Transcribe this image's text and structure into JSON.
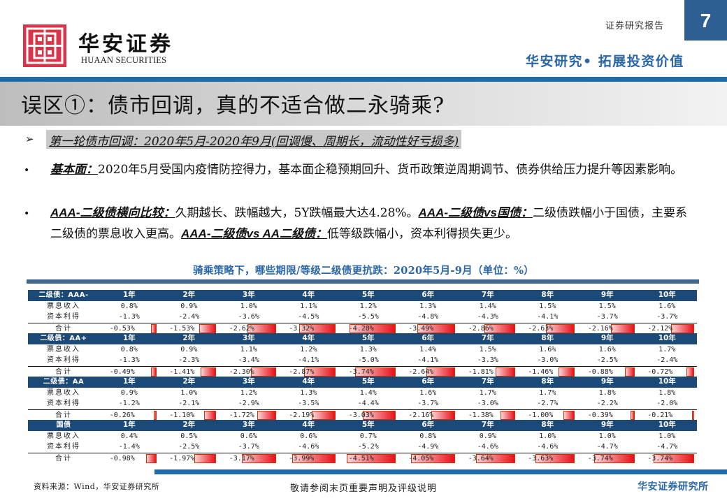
{
  "header": {
    "brand_cn": "华安证券",
    "brand_en": "HUAAN SECURITIES",
    "report_type": "证券研究报告",
    "page_number": "7",
    "slogan": "华安研究• 拓展投资价值"
  },
  "title": "误区①：债市回调，真的不适合做二永骑乘?",
  "section_heading": "第一轮债市回调：2020年5月-2020年9月(回调慢、周期长，流动性好亏损多)",
  "bullets": [
    {
      "kw1": "基本面：",
      "text1": "2020年5月受国内疫情防控得力，基本面企稳预期回升、货币政策逆周期调节、债券供给压力提升等因素影响。"
    },
    {
      "kw1": "AAA-二级债横向比较：",
      "text1": "久期越长、跌幅越大，5Y跌幅最大达4.28%。",
      "kw2": "AAA-二级债vs国债：",
      "text2": "二级债跌幅小于国债，主要系二级债的票息收入更高。",
      "kw3": "AAA-二级债vs AA二级债：",
      "text3": "低等级跌幅小，资本利得损失更少。"
    }
  ],
  "caption": "骑乘策略下，哪些期限/等级二级债更抗跌：2020年5月-9月（单位：%）",
  "table": {
    "columns": [
      "1年",
      "2年",
      "3年",
      "4年",
      "5年",
      "6年",
      "7年",
      "8年",
      "9年",
      "10年"
    ],
    "row_labels": {
      "coupon": "票息收入",
      "capital": "资本利得",
      "total": "合计"
    },
    "groups": [
      {
        "name": "二级债：AAA-",
        "coupon": [
          "0.8%",
          "0.9%",
          "1.0%",
          "1.1%",
          "1.2%",
          "1.3%",
          "1.4%",
          "1.5%",
          "1.5%",
          "1.6%"
        ],
        "capital": [
          "-1.3%",
          "-2.4%",
          "-3.6%",
          "-4.5%",
          "-5.5%",
          "-4.8%",
          "-4.3%",
          "-4.1%",
          "-3.7%",
          "-3.7%"
        ],
        "total": [
          "-0.53%",
          "-1.53%",
          "-2.62%",
          "-3.32%",
          "-4.28%",
          "-3.49%",
          "-2.86%",
          "-2.63%",
          "-2.16%",
          "-2.12%"
        ]
      },
      {
        "name": "二级债：AA+",
        "coupon": [
          "0.8%",
          "0.9%",
          "1.1%",
          "1.2%",
          "1.3%",
          "1.4%",
          "1.5%",
          "1.6%",
          "1.6%",
          "1.7%"
        ],
        "capital": [
          "-1.3%",
          "-2.3%",
          "-3.4%",
          "-4.1%",
          "-5.0%",
          "-4.1%",
          "-3.3%",
          "-3.0%",
          "-2.5%",
          "-2.4%"
        ],
        "total": [
          "-0.49%",
          "-1.41%",
          "-2.30%",
          "-2.87%",
          "-3.74%",
          "-2.64%",
          "-1.81%",
          "-1.46%",
          "-0.88%",
          "-0.72%"
        ]
      },
      {
        "name": "二级债：AA",
        "coupon": [
          "0.9%",
          "1.0%",
          "1.2%",
          "1.3%",
          "1.4%",
          "1.6%",
          "1.7%",
          "1.7%",
          "1.8%",
          "1.8%"
        ],
        "capital": [
          "-1.2%",
          "-2.1%",
          "-2.9%",
          "-3.5%",
          "-4.4%",
          "-3.7%",
          "-3.0%",
          "-2.7%",
          "-2.2%",
          "-2.0%"
        ],
        "total": [
          "-0.26%",
          "-1.10%",
          "-1.72%",
          "-2.19%",
          "-3.03%",
          "-2.16%",
          "-1.38%",
          "-1.00%",
          "-0.39%",
          "-0.21%"
        ]
      },
      {
        "name": "国债",
        "coupon": [
          "0.4%",
          "0.5%",
          "0.6%",
          "0.6%",
          "0.7%",
          "0.8%",
          "0.9%",
          "1.0%",
          "1.0%",
          "1.0%"
        ],
        "capital": [
          "-1.4%",
          "-2.5%",
          "-3.7%",
          "-4.6%",
          "-5.2%",
          "-4.9%",
          "-4.6%",
          "-4.6%",
          "-4.7%",
          "-4.7%"
        ],
        "total": [
          "-0.98%",
          "-1.97%",
          "-3.17%",
          "-3.99%",
          "-4.51%",
          "-4.05%",
          "-3.64%",
          "-3.63%",
          "-3.74%",
          "-3.74%"
        ]
      }
    ]
  },
  "chart_data": {
    "type": "table",
    "title": "骑乘策略下，哪些期限/等级二级债更抗跌：2020年5月-9月（单位：%）",
    "categories": [
      "1年",
      "2年",
      "3年",
      "4年",
      "5年",
      "6年",
      "7年",
      "8年",
      "9年",
      "10年"
    ],
    "series": [
      {
        "name": "二级债：AAA- 合计",
        "values": [
          -0.53,
          -1.53,
          -2.62,
          -3.32,
          -4.28,
          -3.49,
          -2.86,
          -2.63,
          -2.16,
          -2.12
        ]
      },
      {
        "name": "二级债：AA+ 合计",
        "values": [
          -0.49,
          -1.41,
          -2.3,
          -2.87,
          -3.74,
          -2.64,
          -1.81,
          -1.46,
          -0.88,
          -0.72
        ]
      },
      {
        "name": "二级债：AA 合计",
        "values": [
          -0.26,
          -1.1,
          -1.72,
          -2.19,
          -3.03,
          -2.16,
          -1.38,
          -1.0,
          -0.39,
          -0.21
        ]
      },
      {
        "name": "国债 合计",
        "values": [
          -0.98,
          -1.97,
          -3.17,
          -3.99,
          -4.51,
          -4.05,
          -3.64,
          -3.63,
          -3.74,
          -3.74
        ]
      }
    ]
  },
  "footer": {
    "source": "资料来源：Wind，华安证券研究所",
    "disclaimer": "敬请参阅末页重要声明及评级说明",
    "institute": "华安证券研究所"
  },
  "colors": {
    "brand_red": "#d9344a",
    "accent_blue": "#1f6aa8",
    "table_header": "#1c4a78",
    "databar_red": "#e8101a"
  }
}
